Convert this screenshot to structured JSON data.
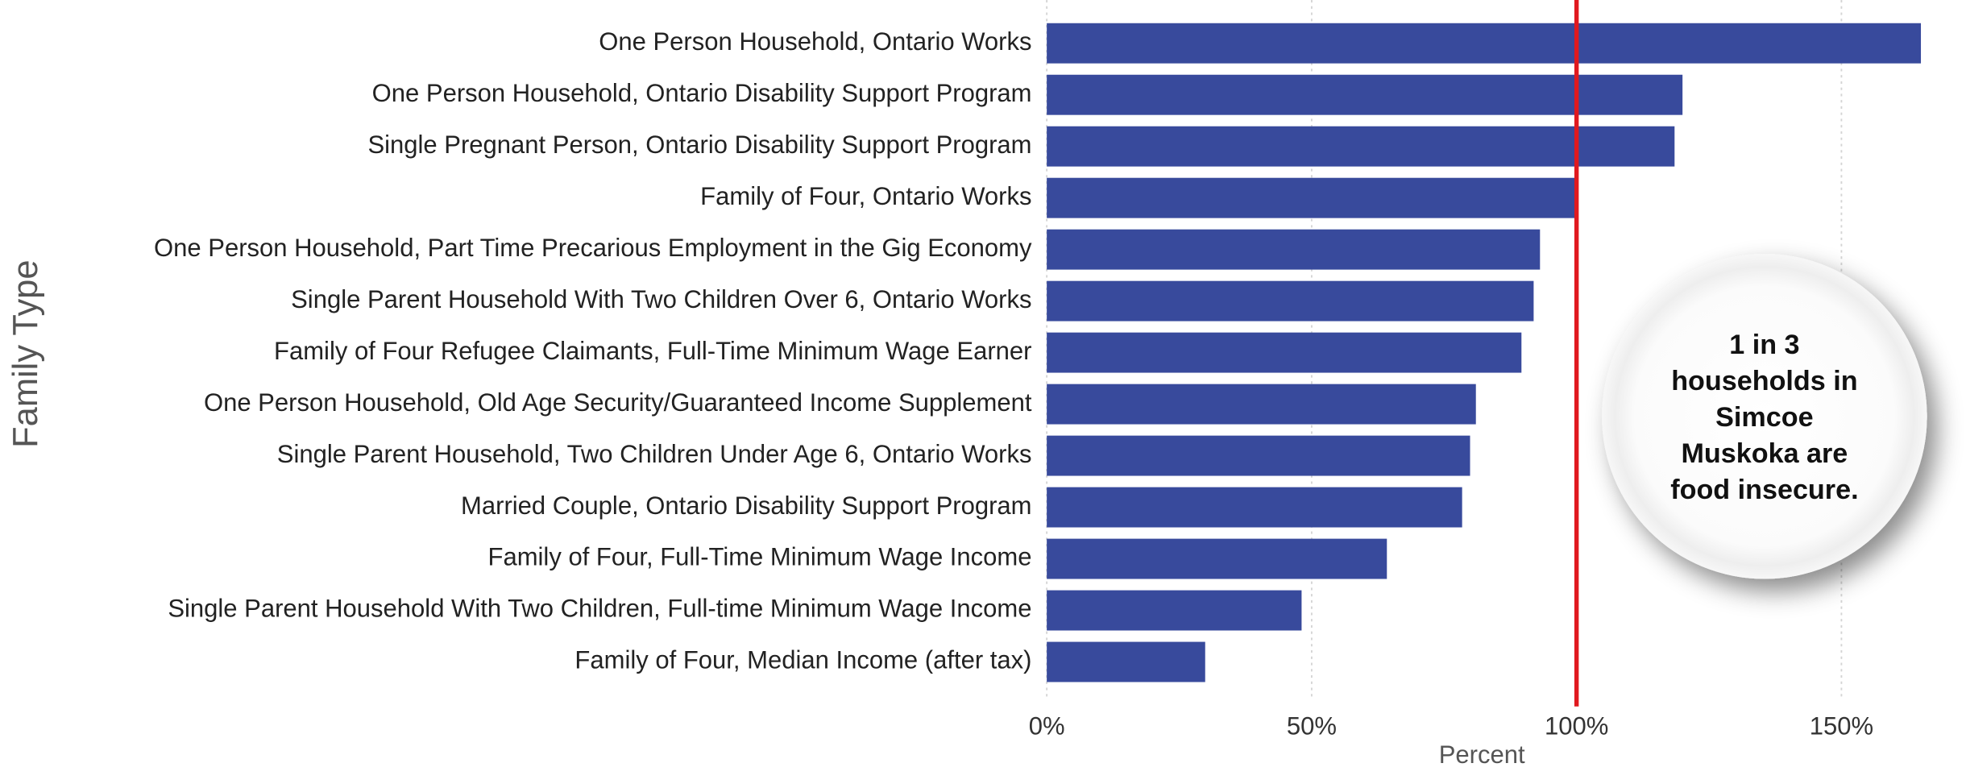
{
  "chart_data": {
    "type": "bar",
    "orientation": "horizontal",
    "y_label": "Family Type",
    "x_label": "Percent",
    "categories": [
      "One Person Household, Ontario Works",
      "One Person Household, Ontario Disability Support Program",
      "Single Pregnant Person, Ontario Disability Support Program",
      "Family of Four, Ontario Works",
      "One Person Household, Part Time Precarious Employment in the Gig Economy",
      "Single Parent Household With Two Children Over 6, Ontario Works",
      "Family of Four Refugee Claimants, Full-Time Minimum Wage Earner",
      "One Person Household, Old Age Security/Guaranteed Income Supplement",
      "Single Parent Household, Two Children Under Age 6, Ontario Works",
      "Married Couple, Ontario Disability Support Program",
      "Family of Four, Full-Time Minimum Wage Income",
      "Single Parent Household With Two Children, Full-time Minimum Wage Income",
      "Family of Four, Median Income (after tax)"
    ],
    "values": [
      165,
      120,
      118.5,
      100,
      93.1,
      91.9,
      89.6,
      81,
      79.9,
      78.4,
      64.2,
      48.1,
      29.9
    ],
    "color": "#384a9c",
    "xlim": [
      0,
      173
    ],
    "xticks": [
      {
        "value": 0,
        "label": "0%"
      },
      {
        "value": 50,
        "label": "50%"
      },
      {
        "value": 100,
        "label": "100%"
      },
      {
        "value": 150,
        "label": "150%"
      }
    ],
    "grid": true,
    "reference_line": {
      "value": 100,
      "color": "#e0191f"
    },
    "annotation": "1 in 3 households in Simcoe Muskoka are food insecure."
  }
}
